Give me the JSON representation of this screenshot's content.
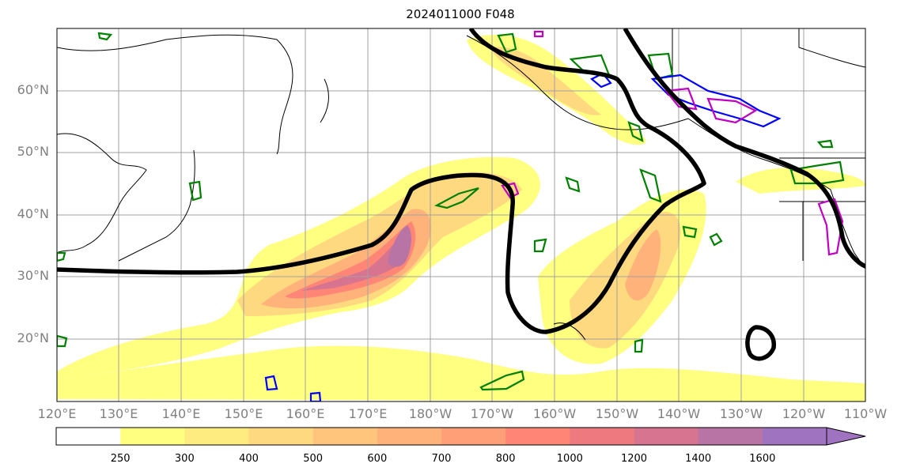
{
  "title": "2024011000 F048",
  "lat_labels": [
    "60°N",
    "50°N",
    "40°N",
    "30°N",
    "20°N"
  ],
  "lon_labels": [
    "120°E",
    "130°E",
    "140°E",
    "150°E",
    "160°E",
    "170°E",
    "180°W",
    "170°W",
    "160°W",
    "150°W",
    "140°W",
    "130°W",
    "120°W",
    "110°W"
  ],
  "colorbar": {
    "levels": [
      "250",
      "300",
      "400",
      "500",
      "600",
      "700",
      "800",
      "1000",
      "1200",
      "1400",
      "1600"
    ],
    "colors": [
      "#ffffff",
      "#ffff80",
      "#ffec80",
      "#ffd980",
      "#ffc57d",
      "#ffb37b",
      "#ff9f78",
      "#ff8677",
      "#ee7a80",
      "#d77590",
      "#b774a5",
      "#a073c0"
    ]
  },
  "layers": {
    "filled": "ivt_shading",
    "black_contour": "height_contour",
    "green_contours": "green_outlines",
    "blue_contours": "blue_outlines",
    "magenta_contours": "magenta_outlines"
  }
}
